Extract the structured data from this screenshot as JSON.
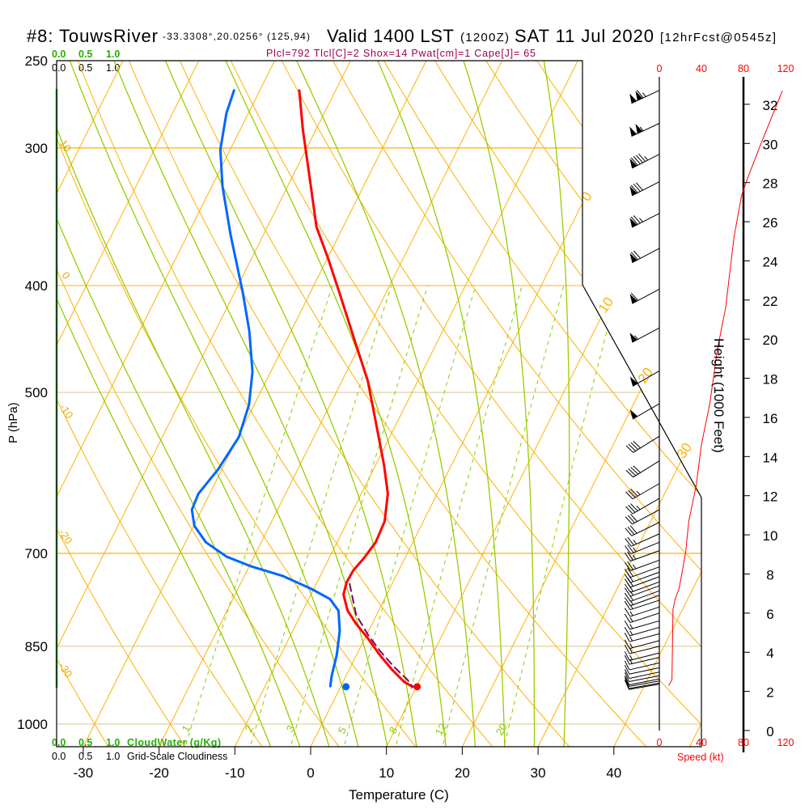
{
  "header": {
    "station": "#8: TouwsRiver",
    "coords": "-33.3308°,20.0256° (125,94)",
    "valid": "Valid 1400 LST",
    "utc": "(1200Z)",
    "date": "SAT 11 Jul 2020",
    "forecast": "[12hrFcst@0545z]"
  },
  "indices": "Plcl=792 Tlcl[C]=2 Shox=14 Pwat[cm]=1 Cape[J]= 65",
  "cloud_scale": {
    "ticks": [
      "0.0",
      "0.5",
      "1.0"
    ],
    "cloudwater_label": "CloudWater (g/Kg)",
    "cloudiness_label": "Grid-Scale Cloudiness"
  },
  "colors": {
    "temperature": "#ff0000",
    "dewpoint": "#0066ff",
    "parcel": "#800060",
    "isotherm": "#ffb000",
    "moist_adiabat": "#99cc00",
    "mixing_ratio": "#88cc00",
    "wind_speed": "#ff0000",
    "indices": "#a0004a",
    "cloud_axis": "#22b000"
  },
  "chart_data": {
    "type": "line",
    "title": "Skew-T log-P sounding",
    "xlabel": "Temperature (C)",
    "ylabel": "P (hPa)",
    "y2label": "Height (1000 Feet)",
    "speed_label": "Speed (kt)",
    "pressure_ticks": [
      250,
      300,
      400,
      500,
      700,
      850,
      1000
    ],
    "temperature_ticks": [
      -30,
      -20,
      -10,
      0,
      10,
      20,
      30,
      40
    ],
    "height_ticks": [
      0,
      2,
      4,
      6,
      8,
      10,
      12,
      14,
      16,
      18,
      20,
      22,
      24,
      26,
      28,
      30,
      32
    ],
    "speed_ticks": [
      0,
      40,
      80,
      120
    ],
    "isotherm_labels": [
      "0",
      "10",
      "20",
      "30"
    ],
    "dry_adiabat_labels": [
      "10",
      "0",
      "-10",
      "-20",
      "-30"
    ],
    "mixing_ratio_labels": [
      "1",
      "2",
      "3",
      "5",
      "8",
      "12",
      "20"
    ],
    "pressure_range": [
      250,
      1050
    ],
    "temperature_range": [
      -35,
      50
    ],
    "series": [
      {
        "name": "Temperature",
        "p": [
          266,
          289,
          319,
          354,
          378,
          408,
          452,
          488,
          531,
          582,
          618,
          655,
          684,
          707,
          725,
          744,
          763,
          789,
          810,
          837,
          866,
          893,
          916,
          925
        ],
        "t": [
          -44.8,
          -41.7,
          -37.7,
          -33.5,
          -29.9,
          -25.9,
          -20.6,
          -16.6,
          -12.9,
          -8.9,
          -6.5,
          -5.1,
          -4.9,
          -5.4,
          -6.0,
          -6.1,
          -5.7,
          -4.1,
          -2.2,
          0.5,
          3.1,
          5.7,
          8.1,
          9.5
        ]
      },
      {
        "name": "Dewpoint",
        "p": [
          266,
          279,
          301,
          325,
          360,
          405,
          440,
          479,
          513,
          549,
          587,
          618,
          639,
          661,
          684,
          705,
          719,
          734,
          754,
          770,
          789,
          823,
          866,
          904,
          924
        ],
        "t": [
          -53.4,
          -52.9,
          -51.3,
          -48.6,
          -44.3,
          -39.0,
          -35.5,
          -32.4,
          -30.7,
          -29.9,
          -30.5,
          -31.5,
          -31.3,
          -29.9,
          -27.3,
          -23.6,
          -19.8,
          -14.9,
          -10.3,
          -7.2,
          -5.3,
          -3.8,
          -2.6,
          -1.9,
          -1.4
        ]
      },
      {
        "name": "Parcel",
        "p": [
          746,
          796,
          830,
          859,
          888,
          911,
          925
        ],
        "t": [
          -5.6,
          -2.7,
          0.2,
          2.9,
          5.8,
          8.3,
          9.5
        ]
      }
    ],
    "surface": {
      "p": 925,
      "temperature": 10.1,
      "dewpoint": 0.7
    },
    "wind_speed_profile": {
      "height_kft": [
        2.3,
        2.6,
        6.2,
        6.7,
        7.3,
        9.1,
        10.7,
        12.5,
        14.6,
        16.7,
        19.4,
        21.6,
        25.2,
        27.3,
        28.1,
        29.9,
        32.7
      ],
      "speed_kt": [
        9,
        12,
        13,
        15,
        19,
        25,
        28,
        35,
        40,
        48,
        55,
        63,
        71,
        78,
        83,
        96,
        117
      ]
    },
    "wind_barbs": {
      "p": [
        266,
        285,
        304,
        322,
        344,
        370,
        403,
        437,
        478,
        512,
        548,
        577,
        605,
        624,
        639,
        656,
        672,
        684,
        696,
        710,
        720,
        728,
        735,
        743,
        749,
        757,
        764,
        772,
        783,
        793,
        806,
        817,
        828,
        840,
        850,
        862,
        870,
        880,
        889,
        897,
        904,
        910,
        914,
        918,
        920
      ],
      "speed_kt": [
        117,
        107,
        95,
        82,
        75,
        68,
        61,
        55,
        52,
        48,
        41,
        38,
        35,
        33,
        31,
        28,
        27,
        26,
        25,
        23,
        21,
        20,
        19,
        18,
        17,
        16,
        15,
        14,
        13,
        13,
        13,
        13,
        13,
        13,
        13,
        13,
        13,
        12,
        12,
        12,
        11,
        11,
        10,
        10,
        9
      ],
      "dir_deg": [
        245,
        245,
        243,
        243,
        243,
        242,
        242,
        242,
        240,
        240,
        238,
        238,
        240,
        240,
        242,
        244,
        246,
        248,
        250,
        250,
        250,
        250,
        250,
        250,
        250,
        250,
        250,
        252,
        252,
        252,
        254,
        254,
        255,
        255,
        256,
        256,
        257,
        257,
        258,
        258,
        259,
        259,
        260,
        260,
        260
      ]
    }
  }
}
